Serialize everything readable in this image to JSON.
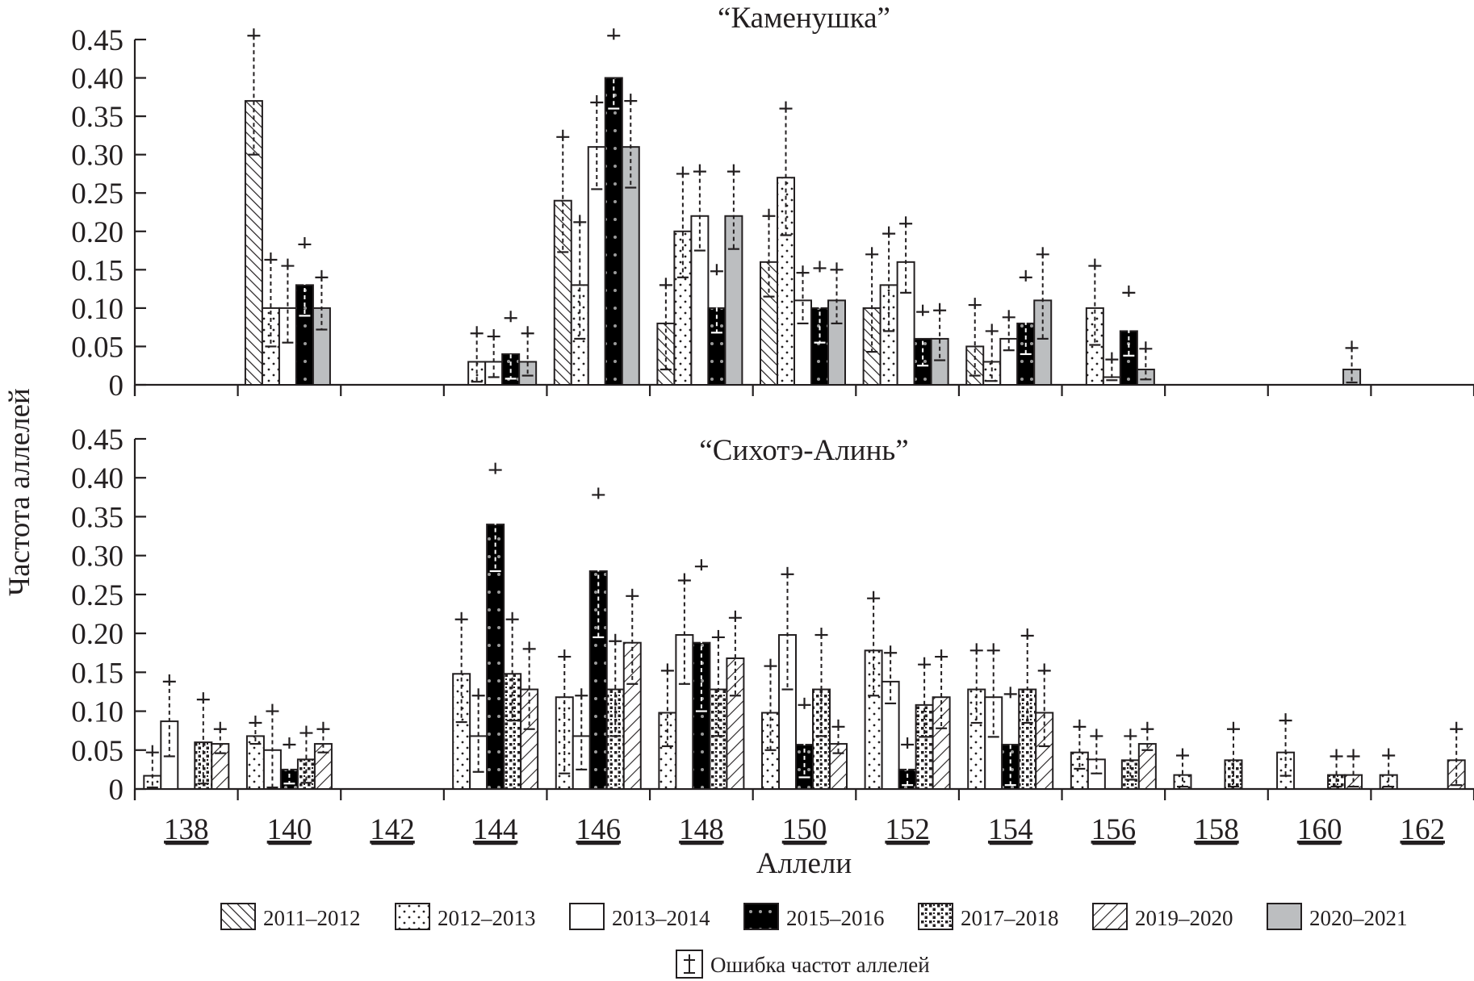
{
  "chart_data": {
    "type": "bar",
    "ylabel": "Частота аллелей",
    "xlabel": "Аллели",
    "ylim": [
      0,
      0.45
    ],
    "yticks": [
      "0",
      "0.05",
      "0.10",
      "0.15",
      "0.20",
      "0.25",
      "0.30",
      "0.35",
      "0.40",
      "0.45"
    ],
    "categories": [
      "138",
      "140",
      "142",
      "144",
      "146",
      "148",
      "150",
      "152",
      "154",
      "156",
      "158",
      "160",
      "162"
    ],
    "legend": {
      "series": [
        {
          "name": "2011–2012",
          "pattern": "diag-back",
          "color": "#231f20"
        },
        {
          "name": "2012–2013",
          "pattern": "dots",
          "color": "#231f20"
        },
        {
          "name": "2013–2014",
          "pattern": "blank",
          "color": "#ffffff"
        },
        {
          "name": "2015–2016",
          "pattern": "black-dots",
          "color": "#000000"
        },
        {
          "name": "2017–2018",
          "pattern": "squares",
          "color": "#231f20"
        },
        {
          "name": "2019–2020",
          "pattern": "diag-fwd",
          "color": "#231f20"
        },
        {
          "name": "2020–2021",
          "pattern": "gray",
          "color": "#bcbec0"
        }
      ],
      "error_label": "Ошибка частот аллелей",
      "placement": "bottom"
    },
    "panels": [
      {
        "title": "“Каменушка”",
        "series_order": [
          "2011–2012",
          "2012–2013",
          "2013–2014",
          "2015–2016",
          "2020–2021"
        ],
        "bars": [
          {
            "allele": "140",
            "values": [
              0.37,
              0.1,
              0.1,
              0.13,
              0.1
            ],
            "err_hi": [
              0.455,
              0.163,
              0.155,
              0.183,
              0.14
            ],
            "err_lo": [
              0.3,
              0.05,
              0.055,
              0.09,
              0.072
            ]
          },
          {
            "allele": "144",
            "values": [
              null,
              0.03,
              0.03,
              0.04,
              0.03
            ],
            "err_hi": [
              null,
              0.067,
              0.063,
              0.087,
              0.067
            ],
            "err_lo": [
              null,
              0.004,
              0.01,
              0.008,
              0.012
            ]
          },
          {
            "allele": "146",
            "values": [
              0.24,
              0.13,
              0.31,
              0.4,
              0.31
            ],
            "err_hi": [
              0.323,
              0.212,
              0.368,
              0.455,
              0.37
            ],
            "err_lo": [
              0.173,
              0.06,
              0.255,
              0.36,
              0.257
            ]
          },
          {
            "allele": "148",
            "values": [
              0.08,
              0.2,
              0.22,
              0.1,
              0.22
            ],
            "err_hi": [
              0.13,
              0.275,
              0.278,
              0.148,
              0.278
            ],
            "err_lo": [
              0.02,
              0.14,
              0.175,
              0.068,
              0.177
            ]
          },
          {
            "allele": "150",
            "values": [
              0.16,
              0.27,
              0.11,
              0.1,
              0.11
            ],
            "err_hi": [
              0.22,
              0.36,
              0.146,
              0.152,
              0.15
            ],
            "err_lo": [
              0.115,
              0.195,
              0.08,
              0.055,
              0.08
            ]
          },
          {
            "allele": "152",
            "values": [
              0.1,
              0.13,
              0.16,
              0.06,
              0.06
            ],
            "err_hi": [
              0.17,
              0.197,
              0.21,
              0.095,
              0.097
            ],
            "err_lo": [
              0.043,
              0.07,
              0.12,
              0.025,
              0.032
            ]
          },
          {
            "allele": "154",
            "values": [
              0.05,
              0.03,
              0.06,
              0.08,
              0.11
            ],
            "err_hi": [
              0.104,
              0.07,
              0.088,
              0.14,
              0.17
            ],
            "err_lo": [
              0.012,
              0.005,
              0.045,
              0.04,
              0.06
            ]
          },
          {
            "allele": "156",
            "values": [
              null,
              0.1,
              0.01,
              0.07,
              0.02
            ],
            "err_hi": [
              null,
              0.155,
              0.033,
              0.12,
              0.047
            ],
            "err_lo": [
              null,
              0.052,
              0.006,
              0.038,
              0.007
            ]
          },
          {
            "allele": "160",
            "values": [
              null,
              null,
              null,
              null,
              0.02
            ],
            "err_hi": [
              null,
              null,
              null,
              null,
              0.048
            ],
            "err_lo": [
              null,
              null,
              null,
              null,
              0.003
            ]
          }
        ]
      },
      {
        "title": "“Сихотэ-Алинь”",
        "series_order": [
          "2012–2013",
          "2013–2014",
          "2015–2016",
          "2017–2018",
          "2019–2020"
        ],
        "bars": [
          {
            "allele": "138",
            "values": [
              0.017,
              0.087,
              null,
              0.06,
              0.058
            ],
            "err_hi": [
              0.047,
              0.138,
              null,
              0.115,
              0.077
            ],
            "err_lo": [
              0.002,
              0.042,
              null,
              0.007,
              0.046
            ]
          },
          {
            "allele": "140",
            "values": [
              0.068,
              0.05,
              0.025,
              0.038,
              0.058
            ],
            "err_hi": [
              0.085,
              0.1,
              0.057,
              0.072,
              0.077
            ],
            "err_lo": [
              0.058,
              0.002,
              0.007,
              0.008,
              0.047
            ]
          },
          {
            "allele": "144",
            "values": [
              0.148,
              0.068,
              0.34,
              0.148,
              0.128
            ],
            "err_hi": [
              0.218,
              0.12,
              0.41,
              0.218,
              0.18
            ],
            "err_lo": [
              0.086,
              0.022,
              0.28,
              0.088,
              0.077
            ]
          },
          {
            "allele": "146",
            "values": [
              0.118,
              0.068,
              0.28,
              0.128,
              0.188
            ],
            "err_hi": [
              0.17,
              0.12,
              0.378,
              0.19,
              0.248
            ],
            "err_lo": [
              0.02,
              0.025,
              0.195,
              0.068,
              0.135
            ]
          },
          {
            "allele": "148",
            "values": [
              0.098,
              0.198,
              0.188,
              0.128,
              0.168
            ],
            "err_hi": [
              0.152,
              0.268,
              0.286,
              0.195,
              0.22
            ],
            "err_lo": [
              0.055,
              0.135,
              0.1,
              0.068,
              0.12
            ]
          },
          {
            "allele": "150",
            "values": [
              0.098,
              0.198,
              0.057,
              0.128,
              0.058
            ],
            "err_hi": [
              0.158,
              0.276,
              0.108,
              0.198,
              0.08
            ],
            "err_lo": [
              0.05,
              0.128,
              0.015,
              0.068,
              0.046
            ]
          },
          {
            "allele": "152",
            "values": [
              0.178,
              0.138,
              0.025,
              0.108,
              0.118
            ],
            "err_hi": [
              0.245,
              0.175,
              0.057,
              0.16,
              0.17
            ],
            "err_lo": [
              0.12,
              0.11,
              0.005,
              0.067,
              0.078
            ]
          },
          {
            "allele": "154",
            "values": [
              0.128,
              0.118,
              0.057,
              0.128,
              0.098
            ],
            "err_hi": [
              0.178,
              0.178,
              0.122,
              0.197,
              0.152
            ],
            "err_lo": [
              0.085,
              0.067,
              0.005,
              0.085,
              0.055
            ]
          },
          {
            "allele": "156",
            "values": [
              0.047,
              0.038,
              null,
              0.037,
              0.058
            ],
            "err_hi": [
              0.08,
              0.068,
              null,
              0.068,
              0.077
            ],
            "err_lo": [
              0.026,
              0.02,
              null,
              0.012,
              0.05
            ]
          },
          {
            "allele": "158",
            "values": [
              0.018,
              null,
              null,
              0.037,
              null
            ],
            "err_hi": [
              0.043,
              null,
              null,
              0.077,
              null
            ],
            "err_lo": [
              0.003,
              null,
              null,
              0.003,
              null
            ]
          },
          {
            "allele": "160",
            "values": [
              0.047,
              null,
              null,
              0.018,
              0.018
            ],
            "err_hi": [
              0.088,
              null,
              null,
              0.042,
              0.042
            ],
            "err_lo": [
              0.017,
              null,
              null,
              0.003,
              0.003
            ]
          },
          {
            "allele": "162",
            "values": [
              0.018,
              null,
              null,
              null,
              0.037
            ],
            "err_hi": [
              0.043,
              null,
              null,
              null,
              0.077
            ],
            "err_lo": [
              0.003,
              null,
              null,
              null,
              0.005
            ]
          }
        ]
      }
    ]
  }
}
